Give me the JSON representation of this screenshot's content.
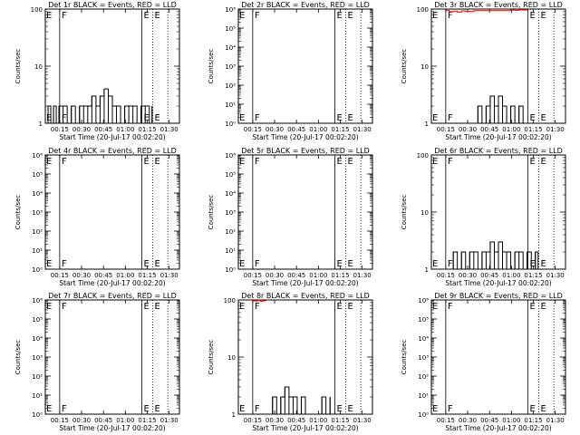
{
  "chart_data": [
    {
      "type": "line",
      "title": "Det 1r BLACK = Events, RED = LLD",
      "xlabel": "Start Time (20-Jul-17 00:02:20)",
      "ylabel": "Counts/sec",
      "yscale": "log",
      "ylim": [
        1,
        100
      ],
      "xlim_min": [
        2,
        100
      ],
      "x_tick_labels": [
        "00:15",
        "00:30",
        "00:45",
        "01:00",
        "01:15",
        "01:30"
      ],
      "y_tick_labels": [
        "1",
        "10",
        "100"
      ],
      "markers": [
        {
          "label": "F",
          "x": 12.5,
          "style": "solid"
        },
        {
          "label": "E",
          "x": 72.5,
          "style": "solid"
        },
        {
          "label": "E",
          "x": 80.5,
          "style": "dotted"
        },
        {
          "label": "",
          "x": 91.5,
          "style": "dotted"
        }
      ],
      "series": [
        {
          "color": "#000000",
          "x": [
            2,
            4,
            6,
            8,
            10,
            12,
            15,
            18,
            21,
            24,
            27,
            30,
            33,
            36,
            39,
            42,
            45,
            48,
            51,
            54,
            57,
            60,
            63,
            66,
            69,
            72,
            75,
            78,
            80
          ],
          "y": [
            1,
            2,
            1,
            2,
            1,
            2,
            2,
            1,
            2,
            1,
            2,
            2,
            2,
            3,
            2,
            3,
            4,
            3,
            2,
            2,
            1,
            2,
            2,
            2,
            1,
            2,
            2,
            1,
            2
          ]
        }
      ]
    },
    {
      "type": "line",
      "title": "Det 2r BLACK = Events, RED = LLD",
      "xlabel": "Start Time (20-Jul-17 00:02:20)",
      "ylabel": "Counts/sec",
      "yscale": "log",
      "ylim": [
        1,
        1000000
      ],
      "xlim_min": [
        2,
        100
      ],
      "x_tick_labels": [
        "00:15",
        "00:30",
        "00:45",
        "01:00",
        "01:15",
        "01:30"
      ],
      "y_tick_labels": [
        "10⁰",
        "10¹",
        "10²",
        "10³",
        "10⁴",
        "10⁵",
        "10⁶"
      ],
      "markers": [
        {
          "label": "F",
          "x": 12.5,
          "style": "solid"
        },
        {
          "label": "E",
          "x": 72.5,
          "style": "solid"
        },
        {
          "label": "E",
          "x": 80.5,
          "style": "dotted"
        },
        {
          "label": "",
          "x": 91.5,
          "style": "dotted"
        }
      ],
      "series": []
    },
    {
      "type": "line",
      "title": "Det 3r BLACK = Events, RED = LLD",
      "xlabel": "Start Time (20-Jul-17 00:02:20)",
      "ylabel": "Counts/sec",
      "yscale": "log",
      "ylim": [
        1,
        100
      ],
      "xlim_min": [
        2,
        100
      ],
      "x_tick_labels": [
        "00:15",
        "00:30",
        "00:45",
        "01:00",
        "01:15",
        "01:30"
      ],
      "y_tick_labels": [
        "1",
        "10",
        "100"
      ],
      "markers": [
        {
          "label": "F",
          "x": 12.5,
          "style": "solid"
        },
        {
          "label": "E",
          "x": 72.5,
          "style": "solid"
        },
        {
          "label": "E",
          "x": 80.5,
          "style": "dotted"
        },
        {
          "label": "",
          "x": 91.5,
          "style": "dotted"
        }
      ],
      "series": [
        {
          "color": "#ff0000",
          "x": [
            12,
            15,
            18,
            21,
            24,
            27,
            30,
            33,
            60,
            63,
            66,
            69,
            72
          ],
          "y": [
            95,
            90,
            92,
            88,
            93,
            91,
            90,
            94,
            96,
            95,
            97,
            96,
            95
          ]
        },
        {
          "color": "#000000",
          "x": [
            33,
            36,
            39,
            42,
            45,
            48,
            51,
            54,
            57,
            60,
            63,
            66,
            69
          ],
          "y": [
            1,
            2,
            1,
            2,
            3,
            2,
            3,
            2,
            1,
            2,
            1,
            2,
            1
          ]
        }
      ]
    },
    {
      "type": "line",
      "title": "Det 4r BLACK = Events, RED = LLD",
      "xlabel": "Start Time (20-Jul-17 00:02:20)",
      "ylabel": "Counts/sec",
      "yscale": "log",
      "ylim": [
        1,
        1000000
      ],
      "xlim_min": [
        2,
        100
      ],
      "x_tick_labels": [
        "00:15",
        "00:30",
        "00:45",
        "01:00",
        "01:15",
        "01:30"
      ],
      "y_tick_labels": [
        "10⁰",
        "10¹",
        "10²",
        "10³",
        "10⁴",
        "10⁵",
        "10⁶"
      ],
      "markers": [
        {
          "label": "F",
          "x": 12.5,
          "style": "solid"
        },
        {
          "label": "E",
          "x": 72.5,
          "style": "solid"
        },
        {
          "label": "E",
          "x": 80.5,
          "style": "dotted"
        },
        {
          "label": "",
          "x": 91.5,
          "style": "dotted"
        }
      ],
      "series": []
    },
    {
      "type": "line",
      "title": "Det 5r BLACK = Events, RED = LLD",
      "xlabel": "Start Time (20-Jul-17 00:02:20)",
      "ylabel": "Counts/sec",
      "yscale": "log",
      "ylim": [
        1,
        1000000
      ],
      "xlim_min": [
        2,
        100
      ],
      "x_tick_labels": [
        "00:15",
        "00:30",
        "00:45",
        "01:00",
        "01:15",
        "01:30"
      ],
      "y_tick_labels": [
        "10⁰",
        "10¹",
        "10²",
        "10³",
        "10⁴",
        "10⁵",
        "10⁶"
      ],
      "markers": [
        {
          "label": "F",
          "x": 12.5,
          "style": "solid"
        },
        {
          "label": "E",
          "x": 72.5,
          "style": "solid"
        },
        {
          "label": "E",
          "x": 80.5,
          "style": "dotted"
        },
        {
          "label": "",
          "x": 91.5,
          "style": "dotted"
        }
      ],
      "series": []
    },
    {
      "type": "line",
      "title": "Det 6r BLACK = Events, RED = LLD",
      "xlabel": "Start Time (20-Jul-17 00:02:20)",
      "ylabel": "Counts/sec",
      "yscale": "log",
      "ylim": [
        1,
        100
      ],
      "xlim_min": [
        2,
        100
      ],
      "x_tick_labels": [
        "00:15",
        "00:30",
        "00:45",
        "01:00",
        "01:15",
        "01:30"
      ],
      "y_tick_labels": [
        "1",
        "10",
        "100"
      ],
      "markers": [
        {
          "label": "F",
          "x": 12.5,
          "style": "solid"
        },
        {
          "label": "E",
          "x": 72.5,
          "style": "solid"
        },
        {
          "label": "E",
          "x": 80.5,
          "style": "dotted"
        },
        {
          "label": "",
          "x": 91.5,
          "style": "dotted"
        }
      ],
      "series": [
        {
          "color": "#000000",
          "x": [
            15,
            18,
            21,
            24,
            27,
            30,
            33,
            36,
            39,
            42,
            45,
            48,
            51,
            54,
            57,
            60,
            63,
            66,
            69,
            72,
            75,
            78,
            80
          ],
          "y": [
            1,
            2,
            1,
            2,
            1,
            2,
            2,
            1,
            2,
            2,
            3,
            2,
            3,
            2,
            2,
            1,
            2,
            2,
            1,
            2,
            1,
            2,
            1
          ]
        }
      ]
    },
    {
      "type": "line",
      "title": "Det 7r BLACK = Events, RED = LLD",
      "xlabel": "Start Time (20-Jul-17 00:02:20)",
      "ylabel": "Counts/sec",
      "yscale": "log",
      "ylim": [
        1,
        1000000
      ],
      "xlim_min": [
        2,
        100
      ],
      "x_tick_labels": [
        "00:15",
        "00:30",
        "00:45",
        "01:00",
        "01:15",
        "01:30"
      ],
      "y_tick_labels": [
        "10⁰",
        "10¹",
        "10²",
        "10³",
        "10⁴",
        "10⁵",
        "10⁶"
      ],
      "markers": [
        {
          "label": "F",
          "x": 12.5,
          "style": "solid"
        },
        {
          "label": "E",
          "x": 72.5,
          "style": "solid"
        },
        {
          "label": "E",
          "x": 80.5,
          "style": "dotted"
        },
        {
          "label": "",
          "x": 91.5,
          "style": "dotted"
        }
      ],
      "series": []
    },
    {
      "type": "line",
      "title": "Det 8r BLACK = Events, RED = LLD",
      "xlabel": "Start Time (20-Jul-17 00:02:20)",
      "ylabel": "Counts/sec",
      "yscale": "log",
      "ylim": [
        1,
        100
      ],
      "xlim_min": [
        2,
        100
      ],
      "x_tick_labels": [
        "00:15",
        "00:30",
        "00:45",
        "01:00",
        "01:15",
        "01:30"
      ],
      "y_tick_labels": [
        "1",
        "10",
        "100"
      ],
      "markers": [
        {
          "label": "F",
          "x": 12.5,
          "style": "solid"
        },
        {
          "label": "E",
          "x": 72.5,
          "style": "solid"
        },
        {
          "label": "E",
          "x": 80.5,
          "style": "dotted"
        },
        {
          "label": "",
          "x": 91.5,
          "style": "dotted"
        }
      ],
      "series": [
        {
          "color": "#ff0000",
          "x": [
            12,
            14,
            16,
            18,
            20,
            22
          ],
          "y": [
            97,
            96,
            98,
            95,
            97,
            96
          ]
        },
        {
          "color": "#000000",
          "x": [
            24,
            27,
            30,
            33,
            36,
            39,
            42,
            45,
            48,
            51,
            63,
            66,
            69
          ],
          "y": [
            1,
            2,
            1,
            2,
            3,
            2,
            2,
            1,
            2,
            1,
            2,
            1,
            2
          ]
        }
      ]
    },
    {
      "type": "line",
      "title": "Det 9r BLACK = Events, RED = LLD",
      "xlabel": "Start Time (20-Jul-17 00:02:20)",
      "ylabel": "Counts/sec",
      "yscale": "log",
      "ylim": [
        1,
        1000000
      ],
      "xlim_min": [
        2,
        100
      ],
      "x_tick_labels": [
        "00:15",
        "00:30",
        "00:45",
        "01:00",
        "01:15",
        "01:30"
      ],
      "y_tick_labels": [
        "10⁰",
        "10¹",
        "10²",
        "10³",
        "10⁴",
        "10⁵",
        "10⁶"
      ],
      "markers": [
        {
          "label": "F",
          "x": 12.5,
          "style": "solid"
        },
        {
          "label": "E",
          "x": 72.5,
          "style": "solid"
        },
        {
          "label": "E",
          "x": 80.5,
          "style": "dotted"
        },
        {
          "label": "",
          "x": 91.5,
          "style": "dotted"
        }
      ],
      "series": []
    }
  ]
}
